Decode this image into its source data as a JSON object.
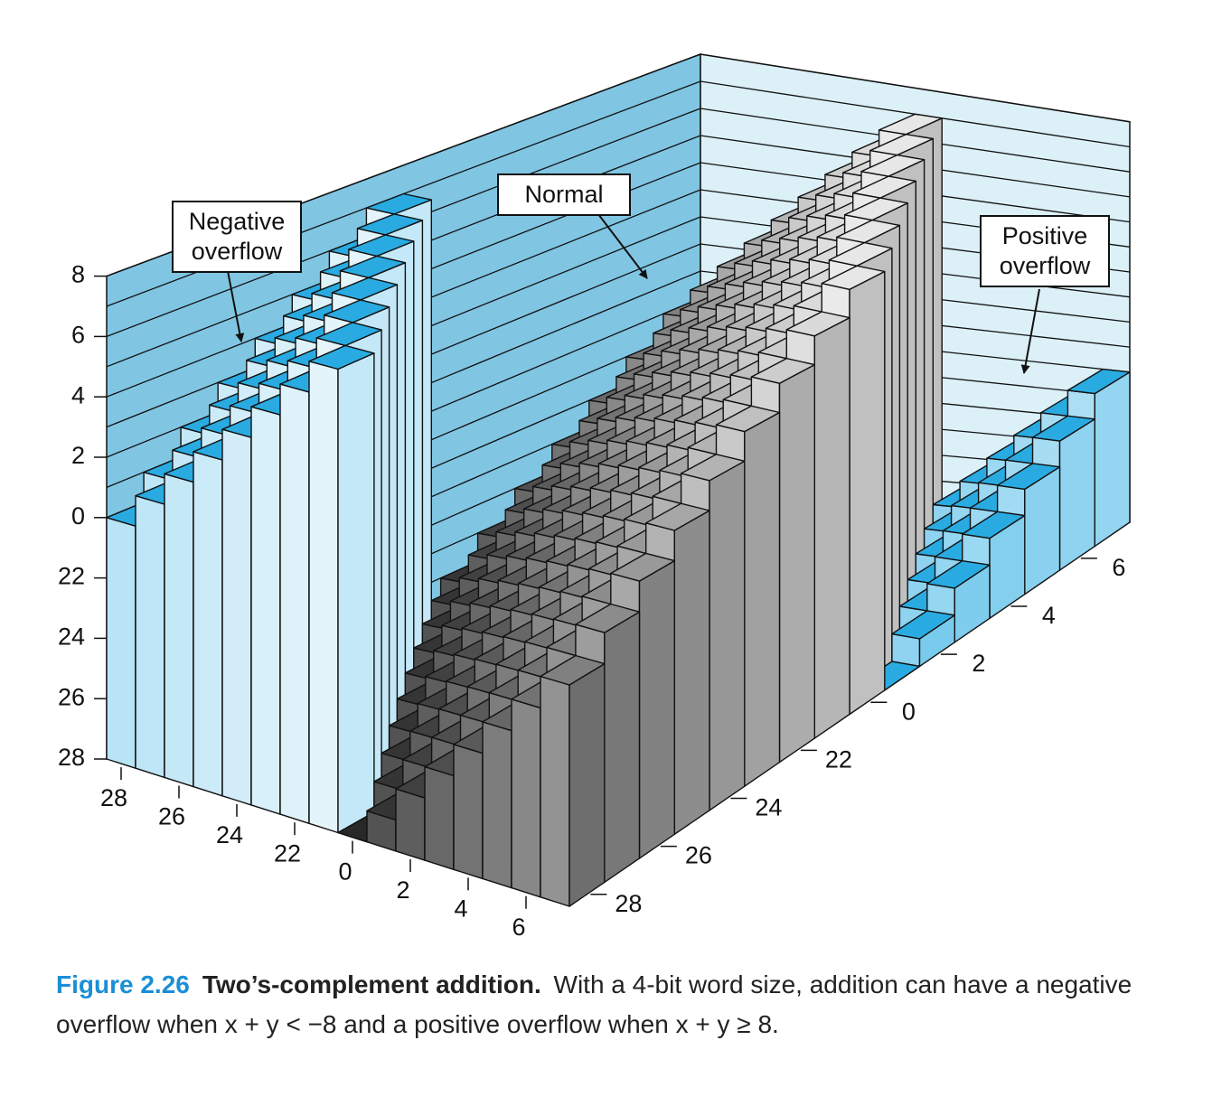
{
  "chart_data": {
    "type": "bar3d",
    "x": [
      -8,
      -7,
      -6,
      -5,
      -4,
      -3,
      -2,
      -1,
      0,
      1,
      2,
      3,
      4,
      5,
      6,
      7
    ],
    "y": [
      -8,
      -7,
      -6,
      -5,
      -4,
      -3,
      -2,
      -1,
      0,
      1,
      2,
      3,
      4,
      5,
      6,
      7
    ],
    "values": [
      [
        0,
        1,
        2,
        3,
        4,
        5,
        6,
        7,
        -8,
        -7,
        -6,
        -5,
        -4,
        -3,
        -2,
        -1
      ],
      [
        1,
        2,
        3,
        4,
        5,
        6,
        7,
        -8,
        -7,
        -6,
        -5,
        -4,
        -3,
        -2,
        -1,
        0
      ],
      [
        2,
        3,
        4,
        5,
        6,
        7,
        -8,
        -7,
        -6,
        -5,
        -4,
        -3,
        -2,
        -1,
        0,
        1
      ],
      [
        3,
        4,
        5,
        6,
        7,
        -8,
        -7,
        -6,
        -5,
        -4,
        -3,
        -2,
        -1,
        0,
        1,
        2
      ],
      [
        4,
        5,
        6,
        7,
        -8,
        -7,
        -6,
        -5,
        -4,
        -3,
        -2,
        -1,
        0,
        1,
        2,
        3
      ],
      [
        5,
        6,
        7,
        -8,
        -7,
        -6,
        -5,
        -4,
        -3,
        -2,
        -1,
        0,
        1,
        2,
        3,
        4
      ],
      [
        6,
        7,
        -8,
        -7,
        -6,
        -5,
        -4,
        -3,
        -2,
        -1,
        0,
        1,
        2,
        3,
        4,
        5
      ],
      [
        7,
        -8,
        -7,
        -6,
        -5,
        -4,
        -3,
        -2,
        -1,
        0,
        1,
        2,
        3,
        4,
        5,
        6
      ],
      [
        -8,
        -7,
        -6,
        -5,
        -4,
        -3,
        -2,
        -1,
        0,
        1,
        2,
        3,
        4,
        5,
        6,
        7
      ],
      [
        -7,
        -6,
        -5,
        -4,
        -3,
        -2,
        -1,
        0,
        1,
        2,
        3,
        4,
        5,
        6,
        7,
        -8
      ],
      [
        -6,
        -5,
        -4,
        -3,
        -2,
        -1,
        0,
        1,
        2,
        3,
        4,
        5,
        6,
        7,
        -8,
        -7
      ],
      [
        -5,
        -4,
        -3,
        -2,
        -1,
        0,
        1,
        2,
        3,
        4,
        5,
        6,
        7,
        -8,
        -7,
        -6
      ],
      [
        -4,
        -3,
        -2,
        -1,
        0,
        1,
        2,
        3,
        4,
        5,
        6,
        7,
        -8,
        -7,
        -6,
        -5
      ],
      [
        -3,
        -2,
        -1,
        0,
        1,
        2,
        3,
        4,
        5,
        6,
        7,
        -8,
        -7,
        -6,
        -5,
        -4
      ],
      [
        -2,
        -1,
        0,
        1,
        2,
        3,
        4,
        5,
        6,
        7,
        -8,
        -7,
        -6,
        -5,
        -4,
        -3
      ],
      [
        -1,
        0,
        1,
        2,
        3,
        4,
        5,
        6,
        7,
        -8,
        -7,
        -6,
        -5,
        -4,
        -3,
        -2
      ]
    ],
    "xlim": [
      -8,
      8
    ],
    "ylim": [
      -8,
      8
    ],
    "zlim": [
      -8,
      8
    ],
    "xticks": [
      {
        "value": -8,
        "label": "28"
      },
      {
        "value": -6,
        "label": "26"
      },
      {
        "value": -4,
        "label": "24"
      },
      {
        "value": -2,
        "label": "22"
      },
      0,
      2,
      4,
      6
    ],
    "yticks": [
      {
        "value": -8,
        "label": "28"
      },
      {
        "value": -6,
        "label": "26"
      },
      {
        "value": -4,
        "label": "24"
      },
      {
        "value": -2,
        "label": "22"
      },
      0,
      2,
      4,
      6
    ],
    "zticks": [
      {
        "value": -8,
        "label": "28"
      },
      {
        "value": -6,
        "label": "26"
      },
      {
        "value": -4,
        "label": "24"
      },
      {
        "value": -2,
        "label": "22"
      },
      0,
      2,
      4,
      6,
      8
    ],
    "zminor_ticks": [
      -7,
      -5,
      -3,
      -1,
      1,
      3,
      5,
      7
    ],
    "colors": {
      "normal": "#8c8c8c",
      "overflow": "#29abe2",
      "left_wall": "#80c6e3",
      "right_wall": "#dcf0f8"
    },
    "annotations": [
      {
        "text": "Negative overflow"
      },
      {
        "text": "Normal"
      },
      {
        "text": "Positive overflow"
      }
    ]
  },
  "caption": {
    "label": "Figure 2.26",
    "title": "Two’s-complement addition.",
    "text": "With a 4-bit word size, addition can have a negative overflow when x + y < −8 and a positive overflow when x + y ≥ 8."
  }
}
